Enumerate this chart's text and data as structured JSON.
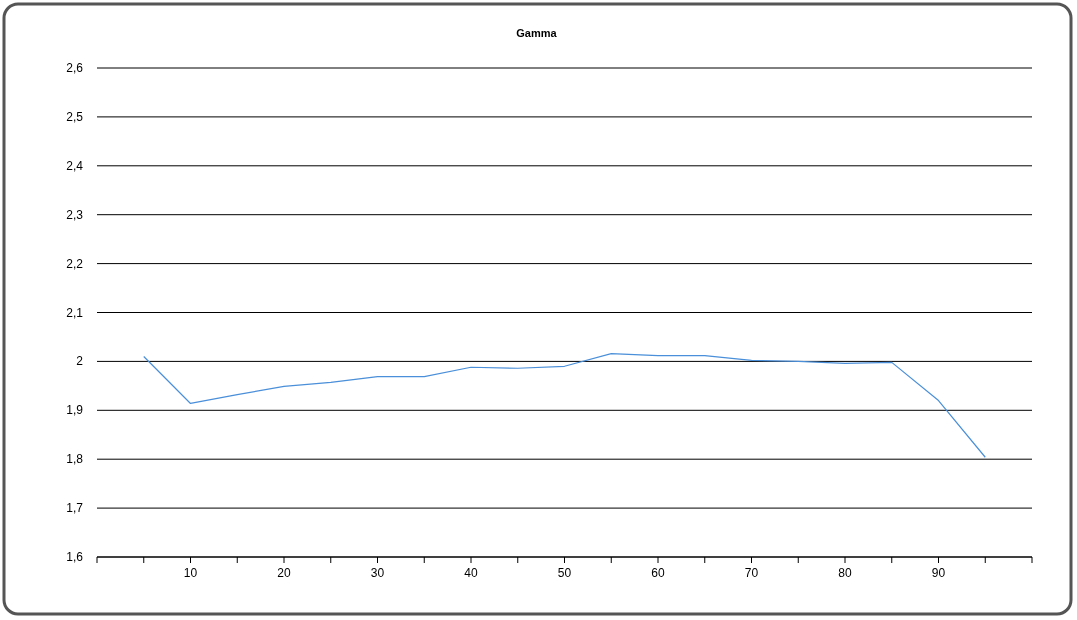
{
  "chart_data": {
    "type": "line",
    "title": "Gamma",
    "x": [
      5,
      10,
      15,
      20,
      25,
      30,
      35,
      40,
      45,
      50,
      55,
      60,
      65,
      70,
      75,
      80,
      85,
      90,
      95
    ],
    "series": [
      {
        "color": "#4a8fd9",
        "values": [
          2.01,
          1.914,
          1.932,
          1.949,
          1.957,
          1.969,
          1.969,
          1.988,
          1.986,
          1.99,
          2.016,
          2.012,
          2.012,
          2.002,
          2.0,
          1.996,
          1.998,
          1.92,
          1.804
        ]
      }
    ],
    "xlim": [
      0,
      100
    ],
    "xticks": [
      {
        "value": 0,
        "label": null
      },
      {
        "value": 5,
        "label": null
      },
      10,
      {
        "value": 15,
        "label": null
      },
      20,
      {
        "value": 25,
        "label": null
      },
      30,
      {
        "value": 35,
        "label": null
      },
      40,
      {
        "value": 45,
        "label": null
      },
      50,
      {
        "value": 55,
        "label": null
      },
      60,
      {
        "value": 65,
        "label": null
      },
      70,
      {
        "value": 75,
        "label": null
      },
      80,
      {
        "value": 85,
        "label": null
      },
      90,
      {
        "value": 95,
        "label": null
      },
      {
        "value": 100,
        "label": null
      }
    ],
    "ylim": [
      1.6,
      2.6
    ],
    "yticks": [
      {
        "value": 1.6,
        "label": "1,6"
      },
      {
        "value": 1.7,
        "label": "1,7"
      },
      {
        "value": 1.8,
        "label": "1,8"
      },
      {
        "value": 1.9,
        "label": "1,9"
      },
      2,
      {
        "value": 2.1,
        "label": "2,1"
      },
      {
        "value": 2.2,
        "label": "2,2"
      },
      {
        "value": 2.3,
        "label": "2,3"
      },
      {
        "value": 2.4,
        "label": "2,4"
      },
      {
        "value": 2.5,
        "label": "2,5"
      },
      {
        "value": 2.6,
        "label": "2,6"
      }
    ],
    "grid": "y",
    "marker": "none",
    "line_style": "solid"
  }
}
